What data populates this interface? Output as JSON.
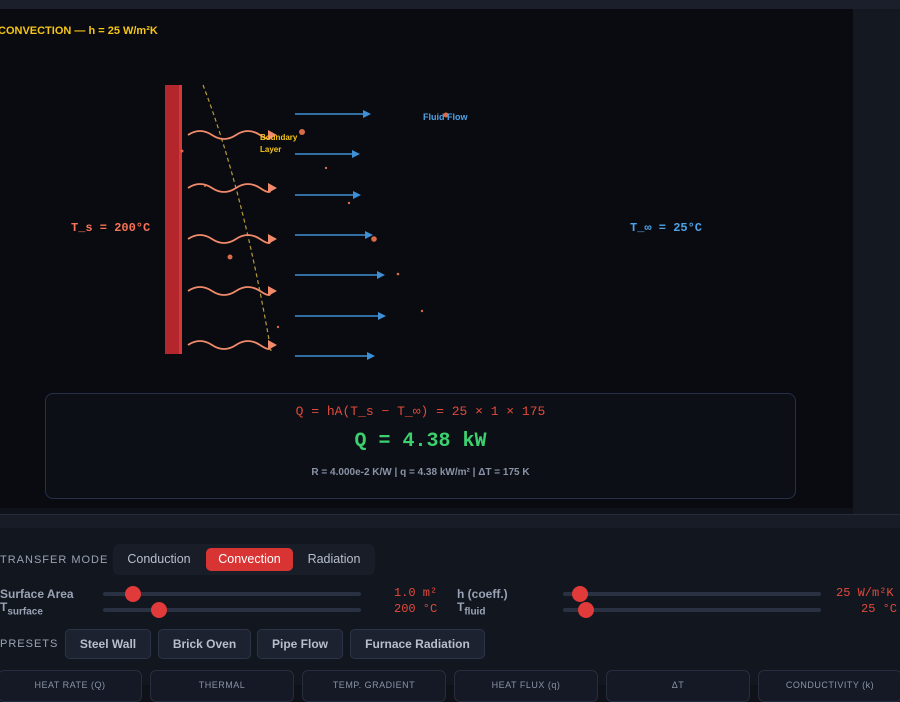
{
  "visualization": {
    "mode_title": "CONVECTION — h = 25 W/m²K",
    "surface_temp_label": "T_s = 200°C",
    "fluid_temp_label": "T_∞ = 25°C",
    "fluid_flow_label": "Fluid Flow",
    "boundary_layer_label": "Boundary Layer",
    "colors": {
      "hot": "#f97357",
      "cold": "#4da3e8",
      "accent": "#f5c518",
      "result": "#3bd16f",
      "wall": "#b3262c"
    }
  },
  "equation": {
    "formula": "Q = hA(T_s − T_∞) = 25 × 1 × 175",
    "result": "Q = 4.38 kW",
    "details": "R = 4.000e-2 K/W  |  q = 4.38 kW/m²  |  ΔT = 175 K"
  },
  "controls": {
    "transfer_mode_label": "TRANSFER MODE",
    "modes": [
      "Conduction",
      "Convection",
      "Radiation"
    ],
    "active_mode": "Convection",
    "sliders": {
      "surface_area": {
        "label": "Surface Area",
        "value": "1.0 m²",
        "fraction": 0.12
      },
      "h_coeff": {
        "label": "h (coeff.)",
        "value": "25 W/m²K",
        "fraction": 0.08
      },
      "t_surface": {
        "label": "T",
        "sub": "surface",
        "value": "200 °C",
        "fraction": 0.22
      },
      "t_fluid": {
        "label": "T",
        "sub": "fluid",
        "value": "25 °C",
        "fraction": 0.1
      }
    },
    "presets_label": "PRESETS",
    "presets": [
      "Steel Wall",
      "Brick Oven",
      "Pipe Flow",
      "Furnace Radiation"
    ]
  },
  "stats": [
    "HEAT RATE (Q)",
    "THERMAL",
    "TEMP. GRADIENT",
    "HEAT FLUX (q)",
    "ΔT",
    "CONDUCTIVITY (k)"
  ]
}
